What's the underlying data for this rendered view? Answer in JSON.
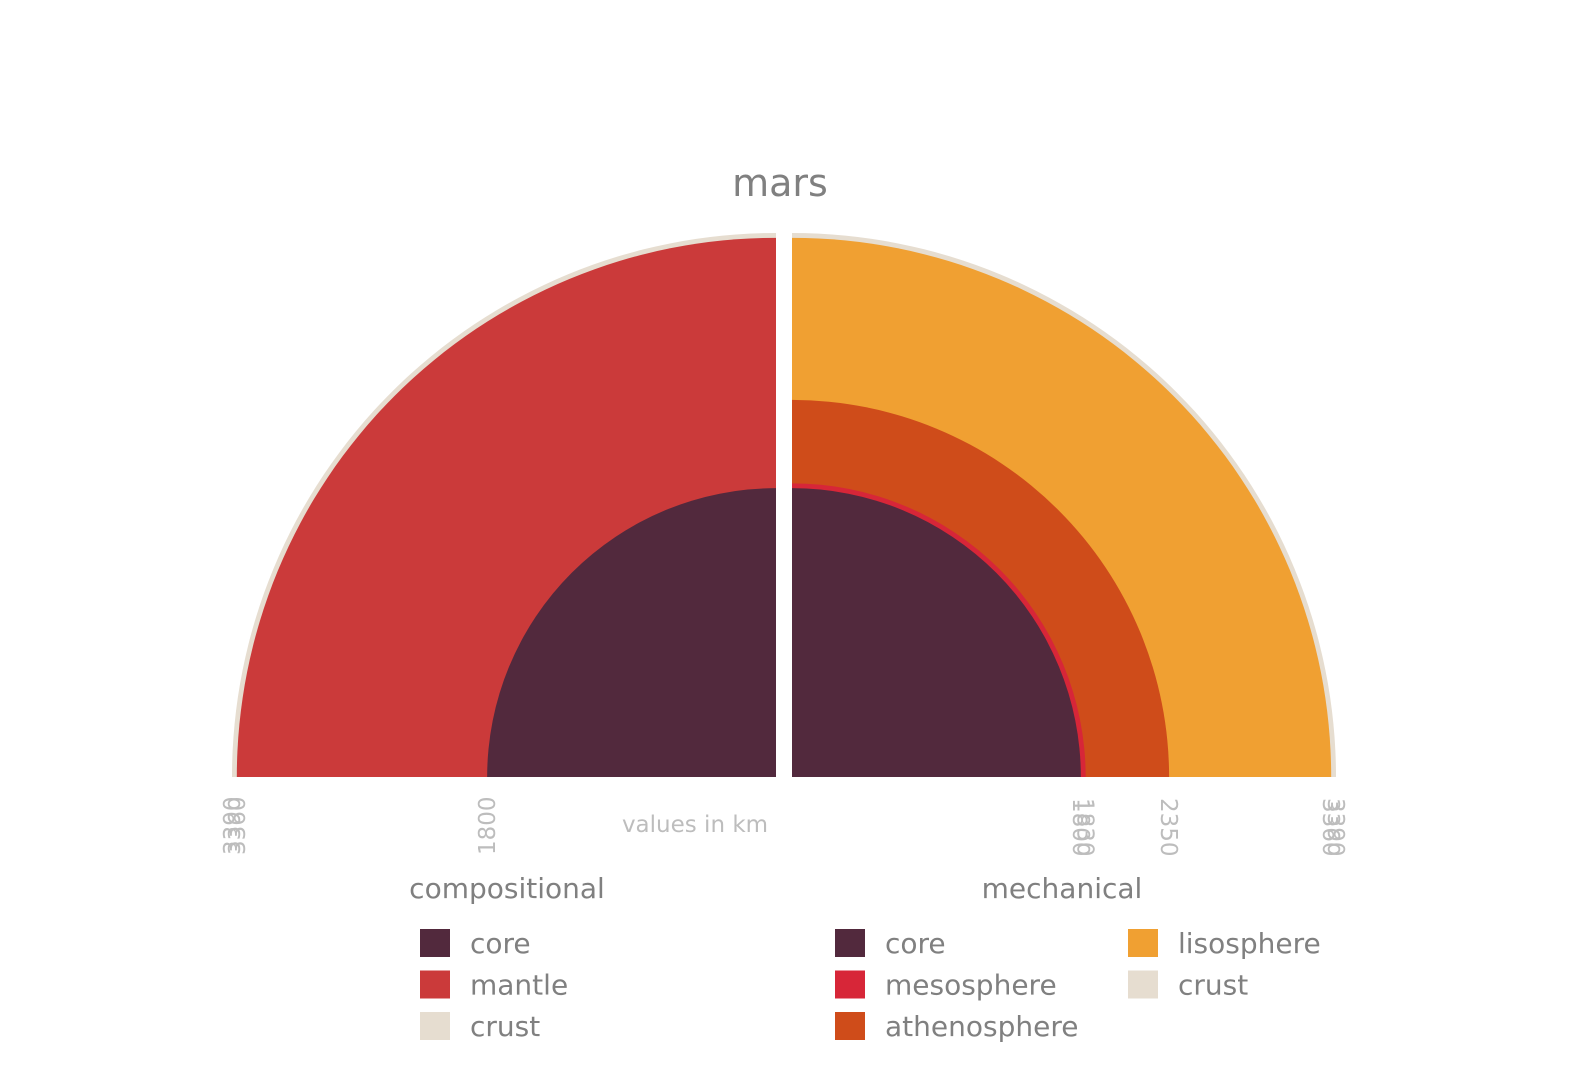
{
  "chart_data": {
    "type": "half-donut",
    "title": "mars",
    "unit_note": "values in km",
    "max_radius": 3390,
    "panels": [
      {
        "name": "compositional",
        "side": "left",
        "layers": [
          {
            "name": "core",
            "inner": 0,
            "outer": 1800,
            "color": "#52293d"
          },
          {
            "name": "mantle",
            "inner": 1800,
            "outer": 3360,
            "color": "#cb3a3a"
          },
          {
            "name": "crust",
            "inner": 3360,
            "outer": 3390,
            "color": "#e6ddd0"
          }
        ],
        "ticks": [
          {
            "value": 3390,
            "label": "3390"
          },
          {
            "value": 3360,
            "label": "3360"
          },
          {
            "value": 1800,
            "label": "1800"
          }
        ]
      },
      {
        "name": "mechanical",
        "side": "right",
        "layers": [
          {
            "name": "core",
            "inner": 0,
            "outer": 1800,
            "color": "#52293d"
          },
          {
            "name": "mesosphere",
            "inner": 1800,
            "outer": 1830,
            "color": "#d72638"
          },
          {
            "name": "athenosphere",
            "inner": 1830,
            "outer": 2350,
            "color": "#cf4c1a"
          },
          {
            "name": "lisosphere",
            "inner": 2350,
            "outer": 3360,
            "color": "#f0a032"
          },
          {
            "name": "crust",
            "inner": 3360,
            "outer": 3390,
            "color": "#e6ddd0"
          }
        ],
        "ticks": [
          {
            "value": 1800,
            "label": "1800"
          },
          {
            "value": 1830,
            "label": "1830"
          },
          {
            "value": 2350,
            "label": "2350"
          },
          {
            "value": 3360,
            "label": "3360"
          },
          {
            "value": 3390,
            "label": "3390"
          }
        ]
      }
    ]
  }
}
